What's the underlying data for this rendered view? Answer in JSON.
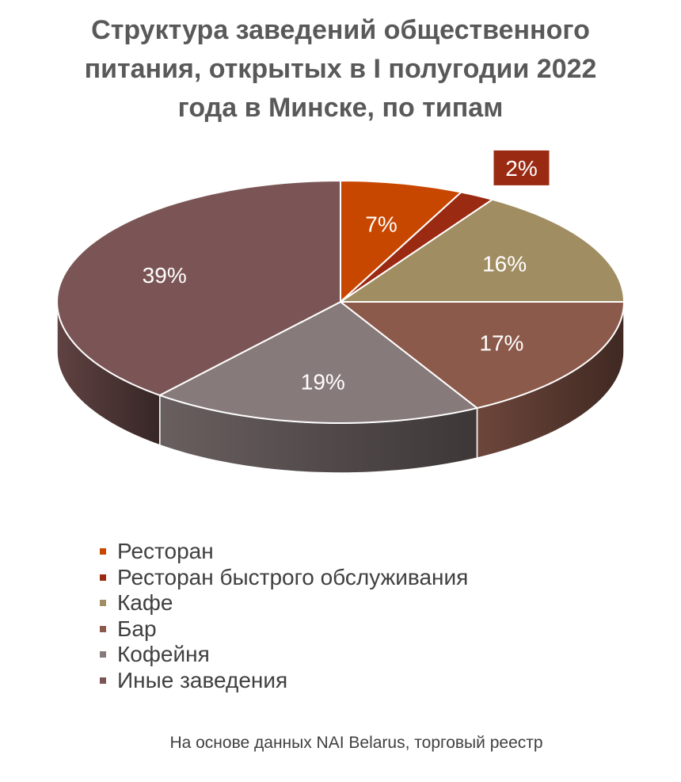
{
  "chart_data": {
    "type": "pie",
    "title_lines": [
      "Структура заведений общественного",
      "питания, открытых в I полугодии 2022",
      "года в Минске, по типам"
    ],
    "slices": [
      {
        "name": "Ресторан",
        "value": 7,
        "label": "7%",
        "color": "#c84700"
      },
      {
        "name": "Ресторан быстрого обслуживания",
        "value": 2,
        "label": "2%",
        "color": "#9a2a12"
      },
      {
        "name": "Кафе",
        "value": 16,
        "label": "16%",
        "color": "#a08d62"
      },
      {
        "name": "Бар",
        "value": 17,
        "label": "17%",
        "color": "#8c5a4b"
      },
      {
        "name": "Кофейня",
        "value": 19,
        "label": "19%",
        "color": "#877a7a"
      },
      {
        "name": "Иные заведения",
        "value": 39,
        "label": "39%",
        "color": "#7b5555"
      }
    ],
    "legend_position": "bottom",
    "style": "3d"
  },
  "source_note": "На основе данных NAI Belarus, торговый реестр"
}
